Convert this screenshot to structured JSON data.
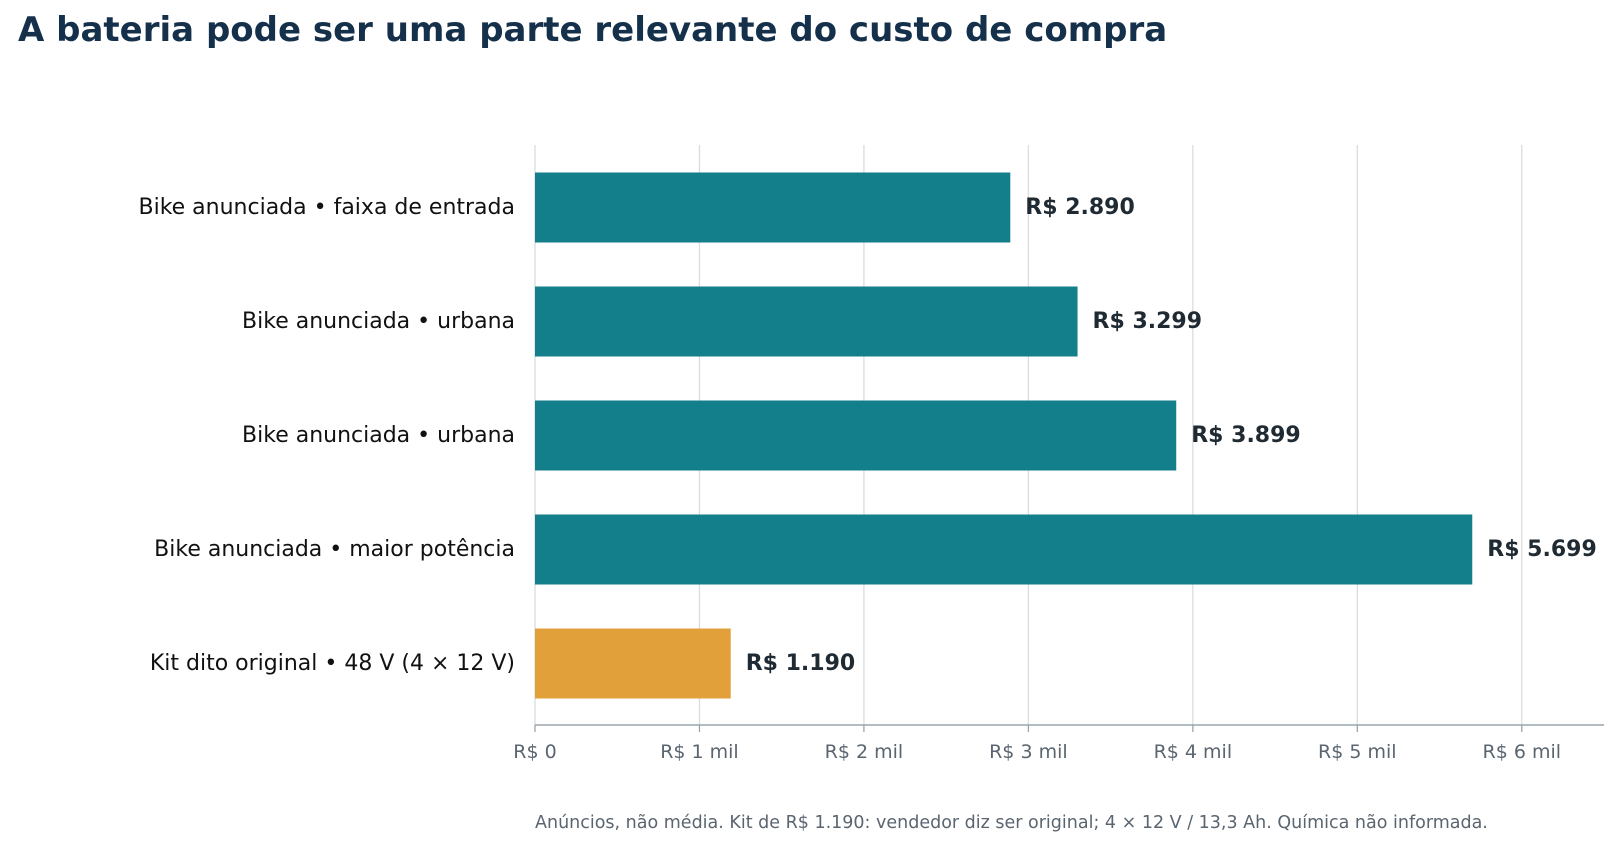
{
  "title": "A bateria pode ser uma parte relevante do custo de compra",
  "footnote": "Anúncios, não média. Kit de R$ 1.190: vendedor diz ser original; 4 × 12 V / 13,3 Ah. Química não informada.",
  "colors": {
    "bike": "#137f8a",
    "kit": "#e1a03a",
    "grid": "#d8dde0",
    "axis": "#9aa6ad",
    "tick_label": "#5a6570",
    "value_label": "#1f2a33",
    "category_label": "#111111"
  },
  "chart_data": {
    "type": "bar",
    "orientation": "horizontal",
    "categories": [
      "Bike anunciada • faixa de entrada",
      "Bike anunciada • urbana",
      "Bike anunciada • urbana",
      "Bike anunciada • maior potência",
      "Kit dito original • 48 V (4 × 12 V)"
    ],
    "values": [
      2890,
      3299,
      3899,
      5699,
      1190
    ],
    "value_labels": [
      "R$ 2.890",
      "R$ 3.299",
      "R$ 3.899",
      "R$ 5.699",
      "R$ 1.190"
    ],
    "bar_groups": [
      "bike",
      "bike",
      "bike",
      "bike",
      "kit"
    ],
    "xlim": [
      0,
      6500
    ],
    "xticks": [
      0,
      1000,
      2000,
      3000,
      4000,
      5000,
      6000
    ],
    "xtick_labels": [
      "R$ 0",
      "R$ 1 mil",
      "R$ 2 mil",
      "R$ 3 mil",
      "R$ 4 mil",
      "R$ 5 mil",
      "R$ 6 mil"
    ],
    "xlabel": "",
    "ylabel": "",
    "grid": "vertical",
    "legend": "none"
  }
}
